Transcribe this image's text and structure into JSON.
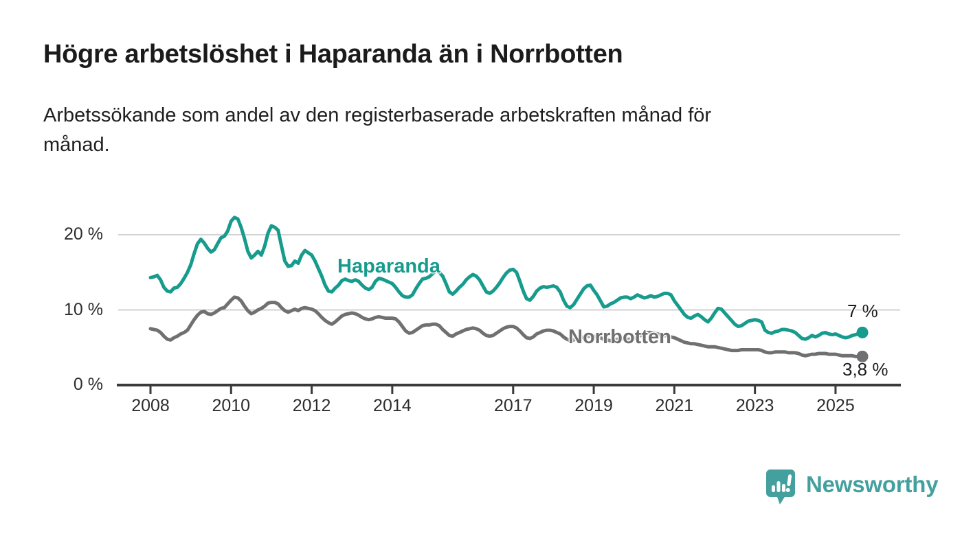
{
  "header": {
    "title": "Högre arbetslöshet i Haparanda än i Norrbotten",
    "subtitle_lines": [
      "Arbetssökande som andel av den registerbaserade arbetskraften månad för",
      "månad."
    ]
  },
  "chart_data": {
    "type": "line",
    "title": "Högre arbetslöshet i Haparanda än i Norrbotten",
    "x_unit": "month",
    "x_start": "2008-01",
    "x_end": "2025-09",
    "x_tick_years": [
      2008,
      2010,
      2012,
      2014,
      2017,
      2019,
      2021,
      2023,
      2025
    ],
    "y_ticks": [
      {
        "value": 0,
        "label": "0 %"
      },
      {
        "value": 10,
        "label": "10 %"
      },
      {
        "value": 20,
        "label": "20 %"
      }
    ],
    "ylim": [
      0,
      24
    ],
    "grid": "horizontal-only",
    "legend": "inline-labels",
    "series": [
      {
        "name": "Haparanda",
        "color": "#169b8d",
        "end_label": "7 %",
        "last_value": 7.0,
        "values": [
          14.3,
          14.4,
          14.6,
          14.0,
          13.0,
          12.5,
          12.4,
          12.9,
          13.0,
          13.5,
          14.2,
          15.0,
          16.0,
          17.5,
          18.8,
          19.4,
          18.9,
          18.2,
          17.7,
          18.0,
          18.8,
          19.6,
          19.8,
          20.5,
          21.8,
          22.3,
          22.1,
          21.0,
          19.5,
          17.8,
          16.9,
          17.3,
          17.8,
          17.3,
          18.5,
          20.2,
          21.2,
          21.0,
          20.6,
          18.5,
          16.5,
          15.8,
          15.9,
          16.5,
          16.2,
          17.3,
          17.9,
          17.6,
          17.3,
          16.5,
          15.5,
          14.5,
          13.3,
          12.5,
          12.4,
          12.9,
          13.3,
          13.9,
          14.1,
          13.9,
          13.8,
          14.0,
          13.8,
          13.3,
          12.9,
          12.7,
          13.0,
          13.8,
          14.2,
          14.1,
          13.9,
          13.7,
          13.5,
          13.0,
          12.4,
          11.9,
          11.7,
          11.7,
          12.0,
          12.8,
          13.5,
          14.1,
          14.2,
          14.4,
          14.8,
          15.2,
          15.0,
          14.5,
          13.5,
          12.4,
          12.1,
          12.5,
          13.0,
          13.4,
          14.0,
          14.4,
          14.7,
          14.5,
          14.0,
          13.2,
          12.4,
          12.2,
          12.5,
          13.0,
          13.6,
          14.3,
          14.9,
          15.3,
          15.4,
          15.0,
          13.8,
          12.5,
          11.5,
          11.3,
          11.8,
          12.5,
          12.9,
          13.1,
          13.0,
          13.1,
          13.2,
          13.0,
          12.4,
          11.3,
          10.5,
          10.3,
          10.7,
          11.4,
          12.1,
          12.8,
          13.2,
          13.3,
          12.6,
          12.0,
          11.2,
          10.4,
          10.5,
          10.8,
          11.0,
          11.3,
          11.6,
          11.7,
          11.7,
          11.5,
          11.7,
          12.0,
          11.8,
          11.6,
          11.7,
          11.9,
          11.7,
          11.8,
          12.0,
          12.2,
          12.2,
          12.0,
          11.2,
          10.6,
          10.0,
          9.4,
          9.0,
          8.9,
          9.2,
          9.4,
          9.1,
          8.7,
          8.4,
          8.9,
          9.6,
          10.2,
          10.1,
          9.6,
          9.1,
          8.6,
          8.1,
          7.8,
          7.9,
          8.2,
          8.5,
          8.6,
          8.7,
          8.6,
          8.4,
          7.3,
          7.0,
          6.9,
          7.1,
          7.2,
          7.4,
          7.4,
          7.3,
          7.2,
          7.0,
          6.6,
          6.2,
          6.1,
          6.3,
          6.6,
          6.4,
          6.6,
          6.9,
          7.0,
          6.8,
          6.7,
          6.8,
          6.6,
          6.4,
          6.3,
          6.4,
          6.6,
          6.7,
          6.9,
          7.0
        ]
      },
      {
        "name": "Norrbotten",
        "color": "#707072",
        "end_label": "3,8 %",
        "last_value": 3.8,
        "values": [
          7.5,
          7.4,
          7.3,
          7.0,
          6.5,
          6.1,
          6.0,
          6.3,
          6.5,
          6.8,
          7.0,
          7.3,
          8.0,
          8.7,
          9.3,
          9.7,
          9.8,
          9.5,
          9.4,
          9.6,
          9.9,
          10.2,
          10.3,
          10.8,
          11.3,
          11.7,
          11.6,
          11.2,
          10.5,
          9.9,
          9.5,
          9.7,
          10.0,
          10.2,
          10.5,
          10.9,
          11.0,
          11.0,
          10.8,
          10.3,
          9.9,
          9.7,
          9.9,
          10.1,
          9.9,
          10.2,
          10.3,
          10.2,
          10.1,
          9.9,
          9.5,
          9.0,
          8.6,
          8.3,
          8.1,
          8.4,
          8.8,
          9.2,
          9.4,
          9.5,
          9.6,
          9.5,
          9.3,
          9.0,
          8.8,
          8.7,
          8.8,
          9.0,
          9.1,
          9.0,
          8.9,
          8.9,
          8.9,
          8.8,
          8.4,
          7.8,
          7.2,
          6.9,
          7.0,
          7.3,
          7.6,
          7.9,
          8.0,
          8.0,
          8.1,
          8.1,
          7.9,
          7.4,
          7.0,
          6.6,
          6.5,
          6.8,
          7.0,
          7.2,
          7.4,
          7.5,
          7.6,
          7.5,
          7.3,
          6.9,
          6.6,
          6.5,
          6.6,
          6.9,
          7.2,
          7.5,
          7.7,
          7.8,
          7.8,
          7.6,
          7.2,
          6.7,
          6.3,
          6.2,
          6.4,
          6.8,
          7.0,
          7.2,
          7.3,
          7.3,
          7.2,
          7.0,
          6.8,
          6.4,
          6.1,
          5.9,
          6.0,
          6.2,
          6.3,
          6.4,
          6.5,
          6.5,
          6.5,
          6.4,
          6.3,
          6.1,
          6.0,
          5.9,
          6.0,
          6.1,
          6.1,
          6.1,
          6.1,
          6.1,
          6.2,
          6.4,
          6.6,
          6.9,
          7.0,
          7.0,
          6.9,
          6.8,
          6.7,
          6.6,
          6.5,
          6.4,
          6.3,
          6.1,
          5.9,
          5.7,
          5.6,
          5.5,
          5.5,
          5.4,
          5.3,
          5.2,
          5.1,
          5.1,
          5.1,
          5.0,
          4.9,
          4.8,
          4.7,
          4.6,
          4.6,
          4.6,
          4.7,
          4.7,
          4.7,
          4.7,
          4.7,
          4.7,
          4.6,
          4.4,
          4.3,
          4.3,
          4.4,
          4.4,
          4.4,
          4.4,
          4.3,
          4.3,
          4.3,
          4.2,
          4.0,
          3.9,
          4.0,
          4.1,
          4.1,
          4.2,
          4.2,
          4.2,
          4.1,
          4.1,
          4.1,
          4.0,
          3.9,
          3.9,
          3.9,
          3.9,
          3.8,
          3.8,
          3.8
        ]
      }
    ]
  },
  "colors": {
    "background": "#ffffff",
    "haparanda": "#169b8d",
    "norrbotten": "#707072",
    "gridline": "#d2d2d2",
    "axis": "#3a3a3a",
    "text_dark": "#1b1b1b",
    "tick_text": "#2d2d2d",
    "brand_teal": "#44a09e"
  },
  "footer": {
    "brand": "Newsworthy"
  }
}
